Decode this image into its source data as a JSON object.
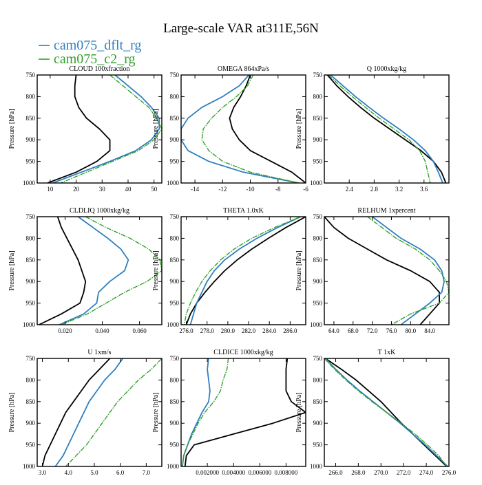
{
  "title": "Large-scale VAR at311E,56N",
  "legend": [
    {
      "name": "cam075_dflt_rg",
      "color": "#2e7fbf",
      "dash": false
    },
    {
      "name": "cam075_c2_rg",
      "color": "#33a02c",
      "dash": true
    }
  ],
  "colors": {
    "black": "#000000",
    "blue": "#2e7fbf",
    "green": "#33a02c"
  },
  "y_axis_label": "Pressure [hPa]",
  "chart_data": [
    {
      "type": "line",
      "title": "CLOUD  100xfraction",
      "xlim": [
        5,
        53
      ],
      "ylim": [
        1000,
        750
      ],
      "xticks": [
        10,
        20,
        30,
        40,
        50
      ],
      "xticklabels": [
        "10",
        "20",
        "30",
        "40",
        "50"
      ],
      "yticks": [
        750,
        800,
        850,
        900,
        950,
        1000
      ],
      "yticklabels": [
        "750",
        "800",
        "850",
        "900",
        "950",
        "1000"
      ],
      "p": [
        750,
        775,
        800,
        825,
        850,
        875,
        900,
        925,
        950,
        975,
        1000
      ],
      "series": [
        {
          "color": "black",
          "x": [
            20,
            19.5,
            19.5,
            21,
            24,
            29,
            33,
            33,
            28,
            20,
            9
          ]
        },
        {
          "color": "blue",
          "x": [
            35,
            40,
            45,
            49,
            52,
            52,
            49,
            43,
            33,
            22,
            11
          ]
        },
        {
          "color": "green",
          "x": [
            33,
            38,
            43,
            48,
            51,
            53,
            50,
            44,
            34,
            24,
            14
          ],
          "dash": true
        }
      ]
    },
    {
      "type": "line",
      "title": "OMEGA  864xPa/s",
      "xlim": [
        -15,
        -6
      ],
      "ylim": [
        1000,
        750
      ],
      "xticks": [
        -14,
        -12,
        -10,
        -8,
        -6
      ],
      "xticklabels": [
        "-14",
        "-12",
        "-10",
        "-8",
        "-6"
      ],
      "yticks": [
        750,
        800,
        850,
        900,
        950,
        1000
      ],
      "yticklabels": [
        "750",
        "800",
        "850",
        "900",
        "950",
        "1000"
      ],
      "p": [
        750,
        775,
        800,
        825,
        850,
        875,
        900,
        925,
        950,
        975,
        1000
      ],
      "series": [
        {
          "color": "black",
          "x": [
            -10.0,
            -10.3,
            -10.7,
            -11.2,
            -11.5,
            -11.3,
            -10.8,
            -10.0,
            -8.5,
            -7.0,
            -6.0
          ]
        },
        {
          "color": "blue",
          "x": [
            -10.1,
            -10.8,
            -12.0,
            -13.5,
            -14.5,
            -15.0,
            -15.0,
            -14.5,
            -13.0,
            -10.5,
            -6.5
          ]
        },
        {
          "color": "green",
          "x": [
            -9.8,
            -10.2,
            -11.0,
            -12.0,
            -12.8,
            -13.4,
            -13.5,
            -13.0,
            -12.0,
            -10.0,
            -6.5
          ],
          "dash": true
        }
      ]
    },
    {
      "type": "line",
      "title": "Q  1000xkg/kg",
      "xlim": [
        2.0,
        4.0
      ],
      "ylim": [
        1000,
        750
      ],
      "xticks": [
        2.4,
        2.8,
        3.2,
        3.6
      ],
      "xticklabels": [
        "2.4",
        "2.8",
        "3.2",
        "3.6"
      ],
      "yticks": [
        750,
        800,
        850,
        900,
        950,
        1000
      ],
      "yticklabels": [
        "750",
        "800",
        "850",
        "900",
        "950",
        "1000"
      ],
      "p": [
        750,
        775,
        800,
        825,
        850,
        875,
        900,
        925,
        950,
        975,
        1000
      ],
      "series": [
        {
          "color": "black",
          "x": [
            2.05,
            2.2,
            2.38,
            2.58,
            2.8,
            3.05,
            3.3,
            3.55,
            3.75,
            3.88,
            3.95
          ]
        },
        {
          "color": "blue",
          "x": [
            2.1,
            2.3,
            2.5,
            2.72,
            2.95,
            3.2,
            3.43,
            3.62,
            3.75,
            3.83,
            3.9
          ]
        },
        {
          "color": "green",
          "x": [
            2.07,
            2.25,
            2.45,
            2.66,
            2.88,
            3.12,
            3.36,
            3.53,
            3.62,
            3.66,
            3.7
          ],
          "dash": true
        }
      ]
    },
    {
      "type": "line",
      "title": "CLDLIQ  1000xkg/kg",
      "xlim": [
        0.005,
        0.072
      ],
      "ylim": [
        1000,
        750
      ],
      "xticks": [
        0.02,
        0.04,
        0.06
      ],
      "xticklabels": [
        "0.020",
        "0.040",
        "0.060"
      ],
      "yticks": [
        750,
        800,
        850,
        900,
        950,
        1000
      ],
      "yticklabels": [
        "750",
        "800",
        "850",
        "900",
        "950",
        "1000"
      ],
      "p": [
        750,
        775,
        800,
        825,
        850,
        875,
        900,
        925,
        950,
        975,
        1000
      ],
      "series": [
        {
          "color": "black",
          "x": [
            0.016,
            0.018,
            0.021,
            0.024,
            0.027,
            0.029,
            0.031,
            0.03,
            0.028,
            0.018,
            0.006
          ]
        },
        {
          "color": "blue",
          "x": [
            0.027,
            0.035,
            0.043,
            0.05,
            0.054,
            0.052,
            0.044,
            0.038,
            0.037,
            0.03,
            0.017
          ]
        },
        {
          "color": "green",
          "x": [
            0.031,
            0.042,
            0.055,
            0.065,
            0.071,
            0.072,
            0.064,
            0.052,
            0.042,
            0.032,
            0.018
          ],
          "dash": true
        }
      ]
    },
    {
      "type": "line",
      "title": "THETA  1.0xK",
      "xlim": [
        275.5,
        287.5
      ],
      "ylim": [
        1000,
        750
      ],
      "xticks": [
        276,
        278,
        280,
        282,
        284,
        286
      ],
      "xticklabels": [
        "276.0",
        "278.0",
        "280.0",
        "282.0",
        "284.0",
        "286.0"
      ],
      "yticks": [
        750,
        800,
        850,
        900,
        950,
        1000
      ],
      "yticklabels": [
        "750",
        "800",
        "850",
        "900",
        "950",
        "1000"
      ],
      "p": [
        750,
        775,
        800,
        825,
        850,
        875,
        900,
        925,
        950,
        975,
        1000
      ],
      "series": [
        {
          "color": "black",
          "x": [
            287.5,
            285.6,
            283.9,
            282.3,
            280.9,
            279.7,
            278.7,
            277.8,
            277.0,
            276.4,
            276.0
          ]
        },
        {
          "color": "blue",
          "x": [
            287.0,
            284.8,
            282.8,
            281.1,
            279.7,
            278.7,
            278.0,
            277.5,
            277.0,
            276.7,
            276.4
          ]
        },
        {
          "color": "green",
          "x": [
            287.0,
            284.5,
            282.3,
            280.6,
            279.3,
            278.3,
            277.5,
            276.9,
            276.4,
            276.0,
            275.8
          ],
          "dash": true
        }
      ]
    },
    {
      "type": "line",
      "title": "RELHUM  1xpercent",
      "xlim": [
        62,
        88
      ],
      "ylim": [
        1000,
        750
      ],
      "xticks": [
        64,
        68,
        72,
        76,
        80,
        84
      ],
      "xticklabels": [
        "64.0",
        "68.0",
        "72.0",
        "76.0",
        "80.0",
        "84.0"
      ],
      "yticks": [
        750,
        800,
        850,
        900,
        950,
        1000
      ],
      "yticklabels": [
        "750",
        "800",
        "850",
        "900",
        "950",
        "1000"
      ],
      "p": [
        750,
        775,
        800,
        825,
        850,
        875,
        900,
        925,
        950,
        975,
        1000
      ],
      "series": [
        {
          "color": "black",
          "x": [
            62,
            64,
            67,
            71,
            75,
            80,
            84,
            86,
            86,
            84,
            82
          ]
        },
        {
          "color": "blue",
          "x": [
            72,
            75,
            78,
            82,
            85,
            86.5,
            87,
            86.5,
            84,
            81,
            78
          ]
        },
        {
          "color": "green",
          "x": [
            71,
            74,
            77,
            81,
            84,
            86,
            87.5,
            88,
            86,
            80,
            76
          ],
          "dash": true
        }
      ]
    },
    {
      "type": "line",
      "title": "U  1xm/s",
      "xlim": [
        2.8,
        7.6
      ],
      "ylim": [
        1000,
        750
      ],
      "xticks": [
        3,
        4,
        5,
        6,
        7
      ],
      "xticklabels": [
        "3.0",
        "4.0",
        "5.0",
        "6.0",
        "7.0"
      ],
      "yticks": [
        750,
        800,
        850,
        900,
        950,
        1000
      ],
      "yticklabels": [
        "750",
        "800",
        "850",
        "900",
        "950",
        "1000"
      ],
      "p": [
        750,
        775,
        800,
        825,
        850,
        875,
        900,
        925,
        950,
        975,
        1000
      ],
      "series": [
        {
          "color": "black",
          "x": [
            5.6,
            5.2,
            4.8,
            4.5,
            4.2,
            3.9,
            3.7,
            3.5,
            3.3,
            3.1,
            3.0
          ]
        },
        {
          "color": "blue",
          "x": [
            6.1,
            5.8,
            5.4,
            5.1,
            4.8,
            4.6,
            4.4,
            4.2,
            4.0,
            3.8,
            3.5
          ]
        },
        {
          "color": "green",
          "x": [
            7.6,
            7.2,
            6.7,
            6.3,
            5.9,
            5.6,
            5.3,
            5.0,
            4.7,
            4.3,
            3.9
          ],
          "dash": true
        }
      ]
    },
    {
      "type": "line",
      "title": "CLDICE  1000xkg/kg",
      "xlim": [
        0,
        0.0095
      ],
      "ylim": [
        1000,
        750
      ],
      "xticks": [
        0.002,
        0.004,
        0.006,
        0.008
      ],
      "xticklabels": [
        "0.002000",
        "0.004000",
        "0.006000",
        "0.008000"
      ],
      "yticks": [
        750,
        800,
        850,
        900,
        950,
        1000
      ],
      "yticklabels": [
        "750",
        "800",
        "850",
        "900",
        "950",
        "1000"
      ],
      "p": [
        750,
        775,
        800,
        825,
        850,
        875,
        900,
        925,
        950,
        975,
        1000
      ],
      "series": [
        {
          "color": "black",
          "x": [
            0.0081,
            0.008,
            0.008,
            0.008,
            0.0084,
            0.0095,
            0.007,
            0.004,
            0.001,
            0.0004,
            0.0003
          ]
        },
        {
          "color": "blue",
          "x": [
            0.0021,
            0.002,
            0.0021,
            0.0022,
            0.0021,
            0.0016,
            0.0012,
            0.0008,
            0.0005,
            0.0002,
            0.0001
          ]
        },
        {
          "color": "green",
          "x": [
            0.0036,
            0.0035,
            0.0032,
            0.003,
            0.0025,
            0.0018,
            0.0013,
            0.0009,
            0.0005,
            0.0002,
            0.0001
          ],
          "dash": true
        }
      ]
    },
    {
      "type": "line",
      "title": "T  1xK",
      "xlim": [
        265,
        276
      ],
      "ylim": [
        1000,
        750
      ],
      "xticks": [
        266,
        268,
        270,
        272,
        274,
        276
      ],
      "xticklabels": [
        "266.0",
        "268.0",
        "270.0",
        "272.0",
        "274.0",
        "276.0"
      ],
      "yticks": [
        750,
        800,
        850,
        900,
        950,
        1000
      ],
      "yticklabels": [
        "750",
        "800",
        "850",
        "900",
        "950",
        "1000"
      ],
      "p": [
        750,
        775,
        800,
        825,
        850,
        875,
        900,
        925,
        950,
        975,
        1000
      ],
      "series": [
        {
          "color": "black",
          "x": [
            265.1,
            266.5,
            267.8,
            268.9,
            270.0,
            270.9,
            271.8,
            272.8,
            273.8,
            274.8,
            275.8
          ]
        },
        {
          "color": "blue",
          "x": [
            265.1,
            266.0,
            267.0,
            268.1,
            269.3,
            270.5,
            271.7,
            272.8,
            273.9,
            274.9,
            275.9
          ]
        },
        {
          "color": "green",
          "x": [
            265.0,
            265.9,
            266.9,
            268.0,
            269.2,
            270.5,
            271.8,
            273.0,
            274.1,
            275.1,
            275.8
          ],
          "dash": true
        }
      ]
    }
  ]
}
